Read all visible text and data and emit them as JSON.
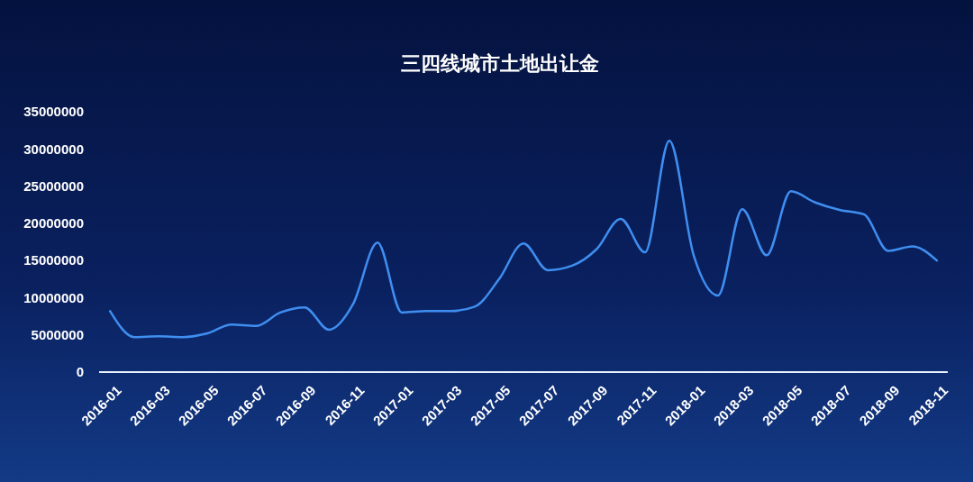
{
  "chart_data": {
    "type": "line",
    "title": "三四线城市土地出让金",
    "categories": [
      "2016-01",
      null,
      "2016-03",
      null,
      "2016-05",
      null,
      "2016-07",
      null,
      "2016-09",
      null,
      "2016-11",
      null,
      "2017-01",
      null,
      "2017-03",
      null,
      "2017-05",
      null,
      "2017-07",
      null,
      "2017-09",
      null,
      "2017-11",
      null,
      "2018-01",
      null,
      "2018-03",
      null,
      "2018-05",
      null,
      "2018-07",
      null,
      "2018-09",
      null,
      "2018-11"
    ],
    "series": [
      {
        "color": "#3f8ef0",
        "values": [
          8200000,
          4700000,
          4800000,
          4700000,
          5200000,
          6400000,
          6200000,
          8000000,
          8700000,
          5700000,
          9200000,
          17400000,
          8000000,
          8200000,
          8200000,
          8800000,
          12500000,
          17300000,
          13700000,
          14300000,
          16500000,
          20600000,
          16100000,
          31100000,
          15700000,
          10300000,
          21900000,
          15700000,
          24300000,
          22800000,
          21800000,
          21200000,
          16300000,
          16900000,
          15000000
        ]
      }
    ],
    "ylim": [
      0,
      35000000
    ],
    "yticks": [
      0,
      5000000,
      10000000,
      15000000,
      20000000,
      25000000,
      30000000,
      35000000
    ],
    "grid": false,
    "marker": "none",
    "line_style": "solid"
  }
}
